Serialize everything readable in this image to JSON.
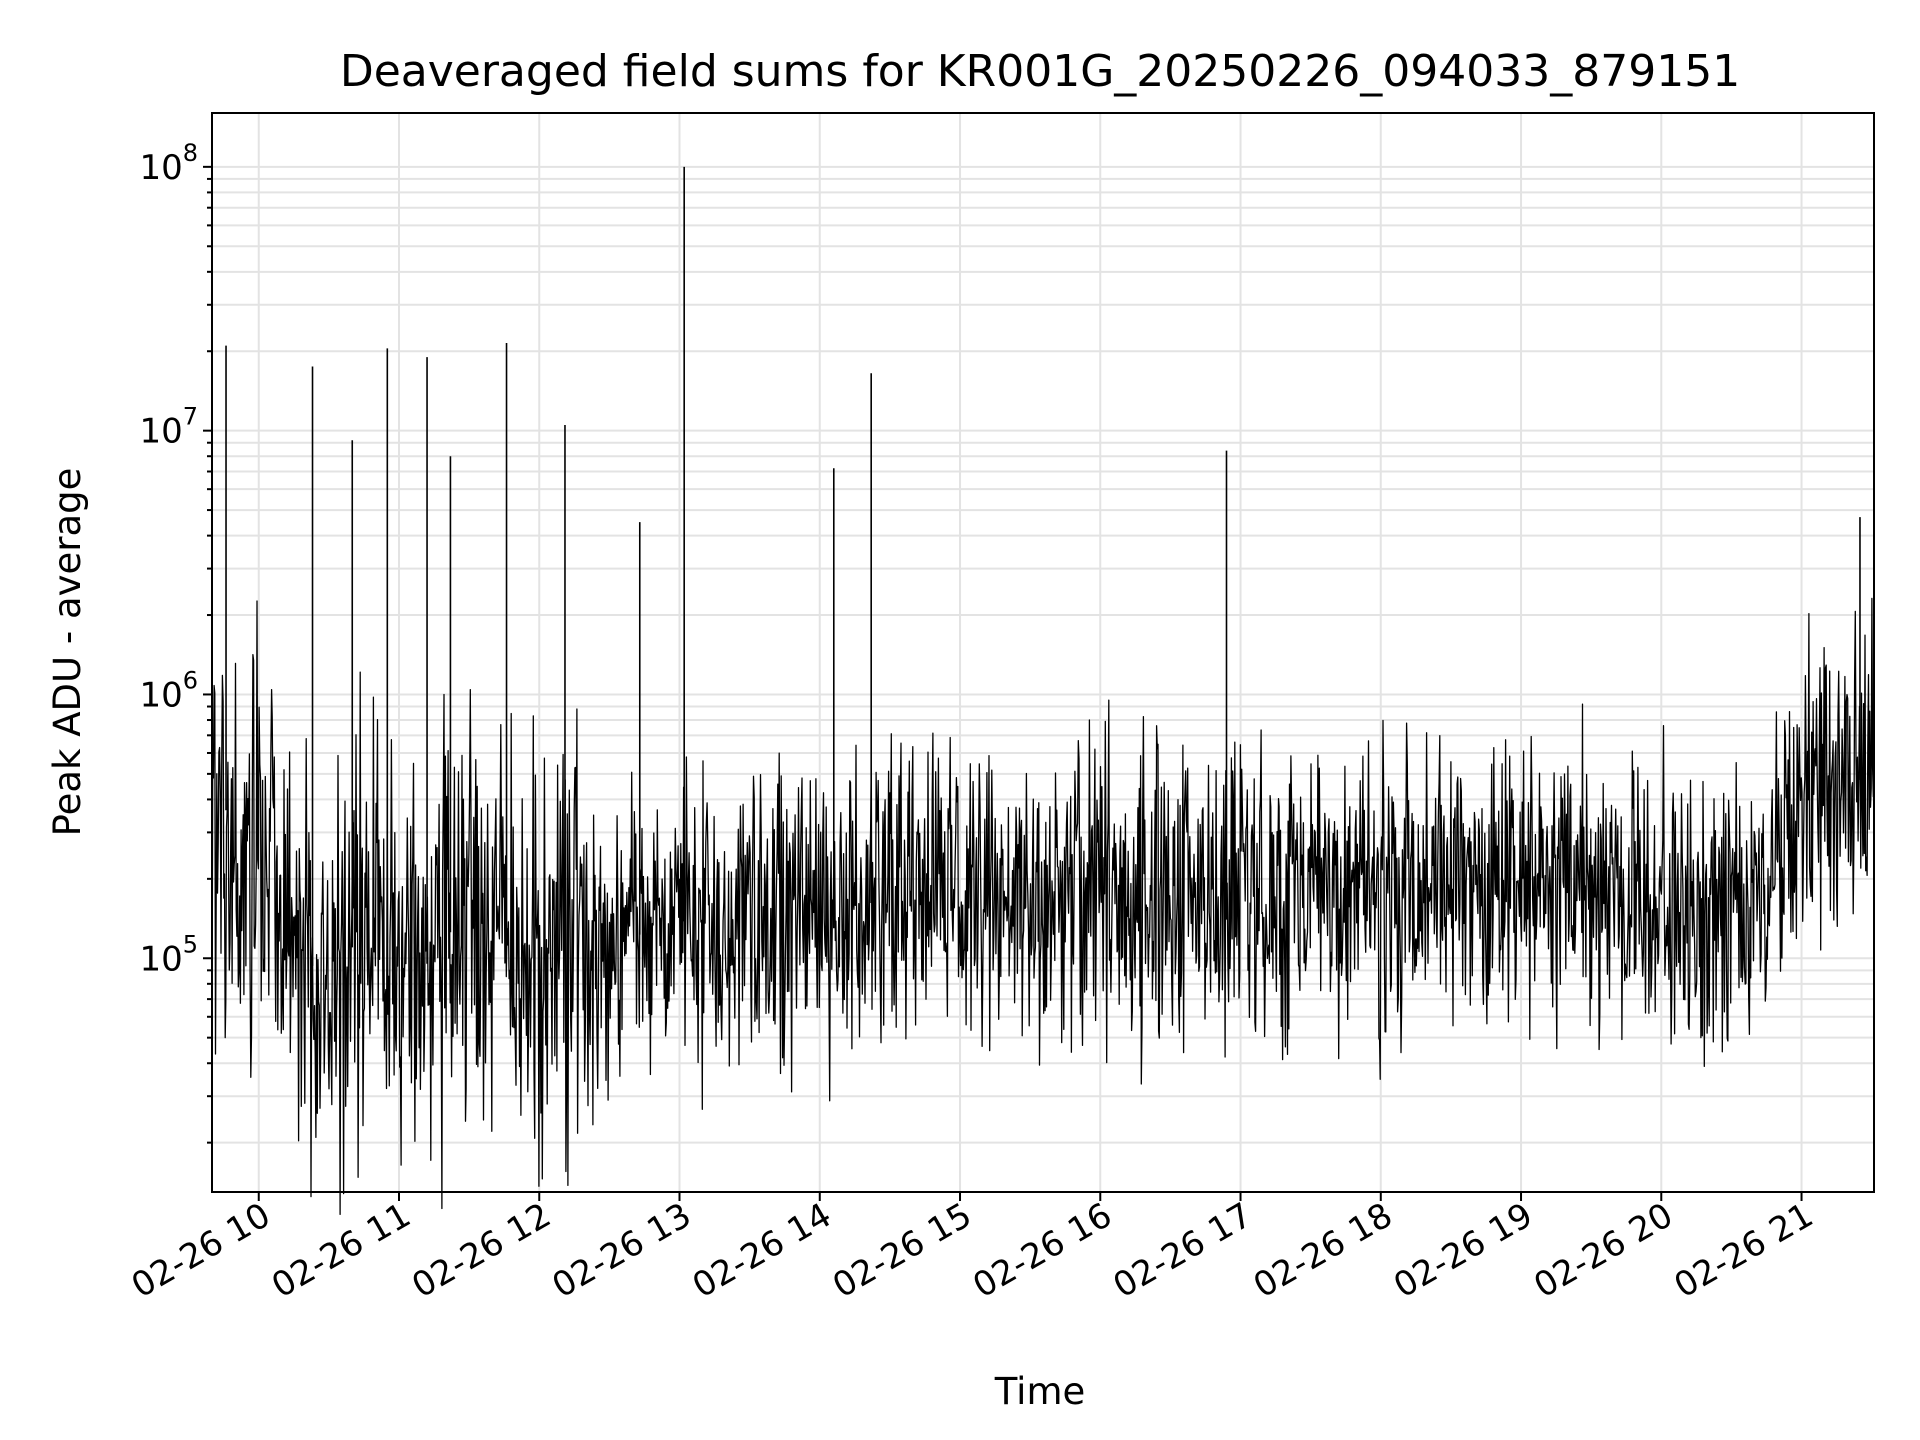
{
  "chart_data": {
    "type": "line",
    "title": "Deaveraged field sums for KR001G_20250226_094033_879151",
    "xlabel": "Time",
    "ylabel": "Peak ADU - average",
    "yscale": "log",
    "ylim": [
      13000,
      160000000
    ],
    "xlim": [
      "2025-02-26 09:40",
      "2025-02-26 21:31"
    ],
    "x_tick_labels": [
      "02-26 10",
      "02-26 11",
      "02-26 12",
      "02-26 13",
      "02-26 14",
      "02-26 15",
      "02-26 16",
      "02-26 17",
      "02-26 18",
      "02-26 19",
      "02-26 20",
      "02-26 21"
    ],
    "y_tick_labels": [
      {
        "base": "10",
        "exp": "5",
        "value": 100000
      },
      {
        "base": "10",
        "exp": "6",
        "value": 1000000
      },
      {
        "base": "10",
        "exp": "7",
        "value": 10000000
      },
      {
        "base": "10",
        "exp": "8",
        "value": 100000000
      }
    ],
    "grid": true,
    "line_color": "#000000",
    "series": [
      {
        "x": [
          "2025-02-26 09:40",
          "2025-02-26 09:45",
          "2025-02-26 09:50",
          "2025-02-26 10:00",
          "2025-02-26 10:10",
          "2025-02-26 10:20",
          "2025-02-26 10:30",
          "2025-02-26 10:40",
          "2025-02-26 10:50",
          "2025-02-26 11:00",
          "2025-02-26 11:10",
          "2025-02-26 11:20",
          "2025-02-26 11:30",
          "2025-02-26 11:40",
          "2025-02-26 11:50",
          "2025-02-26 12:00",
          "2025-02-26 12:10",
          "2025-02-26 12:20",
          "2025-02-26 12:30",
          "2025-02-26 12:40",
          "2025-02-26 12:50",
          "2025-02-26 13:00",
          "2025-02-26 13:10",
          "2025-02-26 13:20",
          "2025-02-26 13:30",
          "2025-02-26 13:40",
          "2025-02-26 13:50",
          "2025-02-26 14:00",
          "2025-02-26 14:10",
          "2025-02-26 14:20",
          "2025-02-26 14:30",
          "2025-02-26 14:40",
          "2025-02-26 14:50",
          "2025-02-26 15:00",
          "2025-02-26 15:15",
          "2025-02-26 15:30",
          "2025-02-26 15:45",
          "2025-02-26 16:00",
          "2025-02-26 16:15",
          "2025-02-26 16:30",
          "2025-02-26 16:45",
          "2025-02-26 17:00",
          "2025-02-26 17:15",
          "2025-02-26 17:30",
          "2025-02-26 17:45",
          "2025-02-26 18:00",
          "2025-02-26 18:15",
          "2025-02-26 18:30",
          "2025-02-26 18:45",
          "2025-02-26 19:00",
          "2025-02-26 19:15",
          "2025-02-26 19:30",
          "2025-02-26 19:45",
          "2025-02-26 20:00",
          "2025-02-26 20:15",
          "2025-02-26 20:30",
          "2025-02-26 20:45",
          "2025-02-26 21:00",
          "2025-02-26 21:10",
          "2025-02-26 21:20",
          "2025-02-26 21:30"
        ],
        "y": [
          300000,
          400000,
          250000,
          300000,
          180000,
          100000,
          80000,
          110000,
          130000,
          100000,
          90000,
          120000,
          150000,
          130000,
          110000,
          110000,
          130000,
          120000,
          130000,
          120000,
          130000,
          140000,
          130000,
          150000,
          140000,
          160000,
          150000,
          130000,
          130000,
          160000,
          170000,
          170000,
          170000,
          170000,
          160000,
          170000,
          180000,
          180000,
          170000,
          180000,
          170000,
          180000,
          170000,
          180000,
          180000,
          180000,
          180000,
          180000,
          180000,
          190000,
          190000,
          180000,
          180000,
          160000,
          160000,
          160000,
          170000,
          400000,
          450000,
          450000,
          500000
        ]
      }
    ],
    "spikes": [
      {
        "x": "2025-02-26 09:46",
        "y": 21000000
      },
      {
        "x": "2025-02-26 10:23",
        "y": 17500000
      },
      {
        "x": "2025-02-26 10:40",
        "y": 9200000
      },
      {
        "x": "2025-02-26 10:55",
        "y": 20500000
      },
      {
        "x": "2025-02-26 11:12",
        "y": 19000000
      },
      {
        "x": "2025-02-26 11:22",
        "y": 8000000
      },
      {
        "x": "2025-02-26 11:46",
        "y": 21500000
      },
      {
        "x": "2025-02-26 12:11",
        "y": 10500000
      },
      {
        "x": "2025-02-26 12:43",
        "y": 4500000
      },
      {
        "x": "2025-02-26 13:02",
        "y": 100000000
      },
      {
        "x": "2025-02-26 14:06",
        "y": 7200000
      },
      {
        "x": "2025-02-26 14:22",
        "y": 16500000
      },
      {
        "x": "2025-02-26 16:54",
        "y": 8400000
      },
      {
        "x": "2025-02-26 21:25",
        "y": 4700000
      }
    ]
  }
}
